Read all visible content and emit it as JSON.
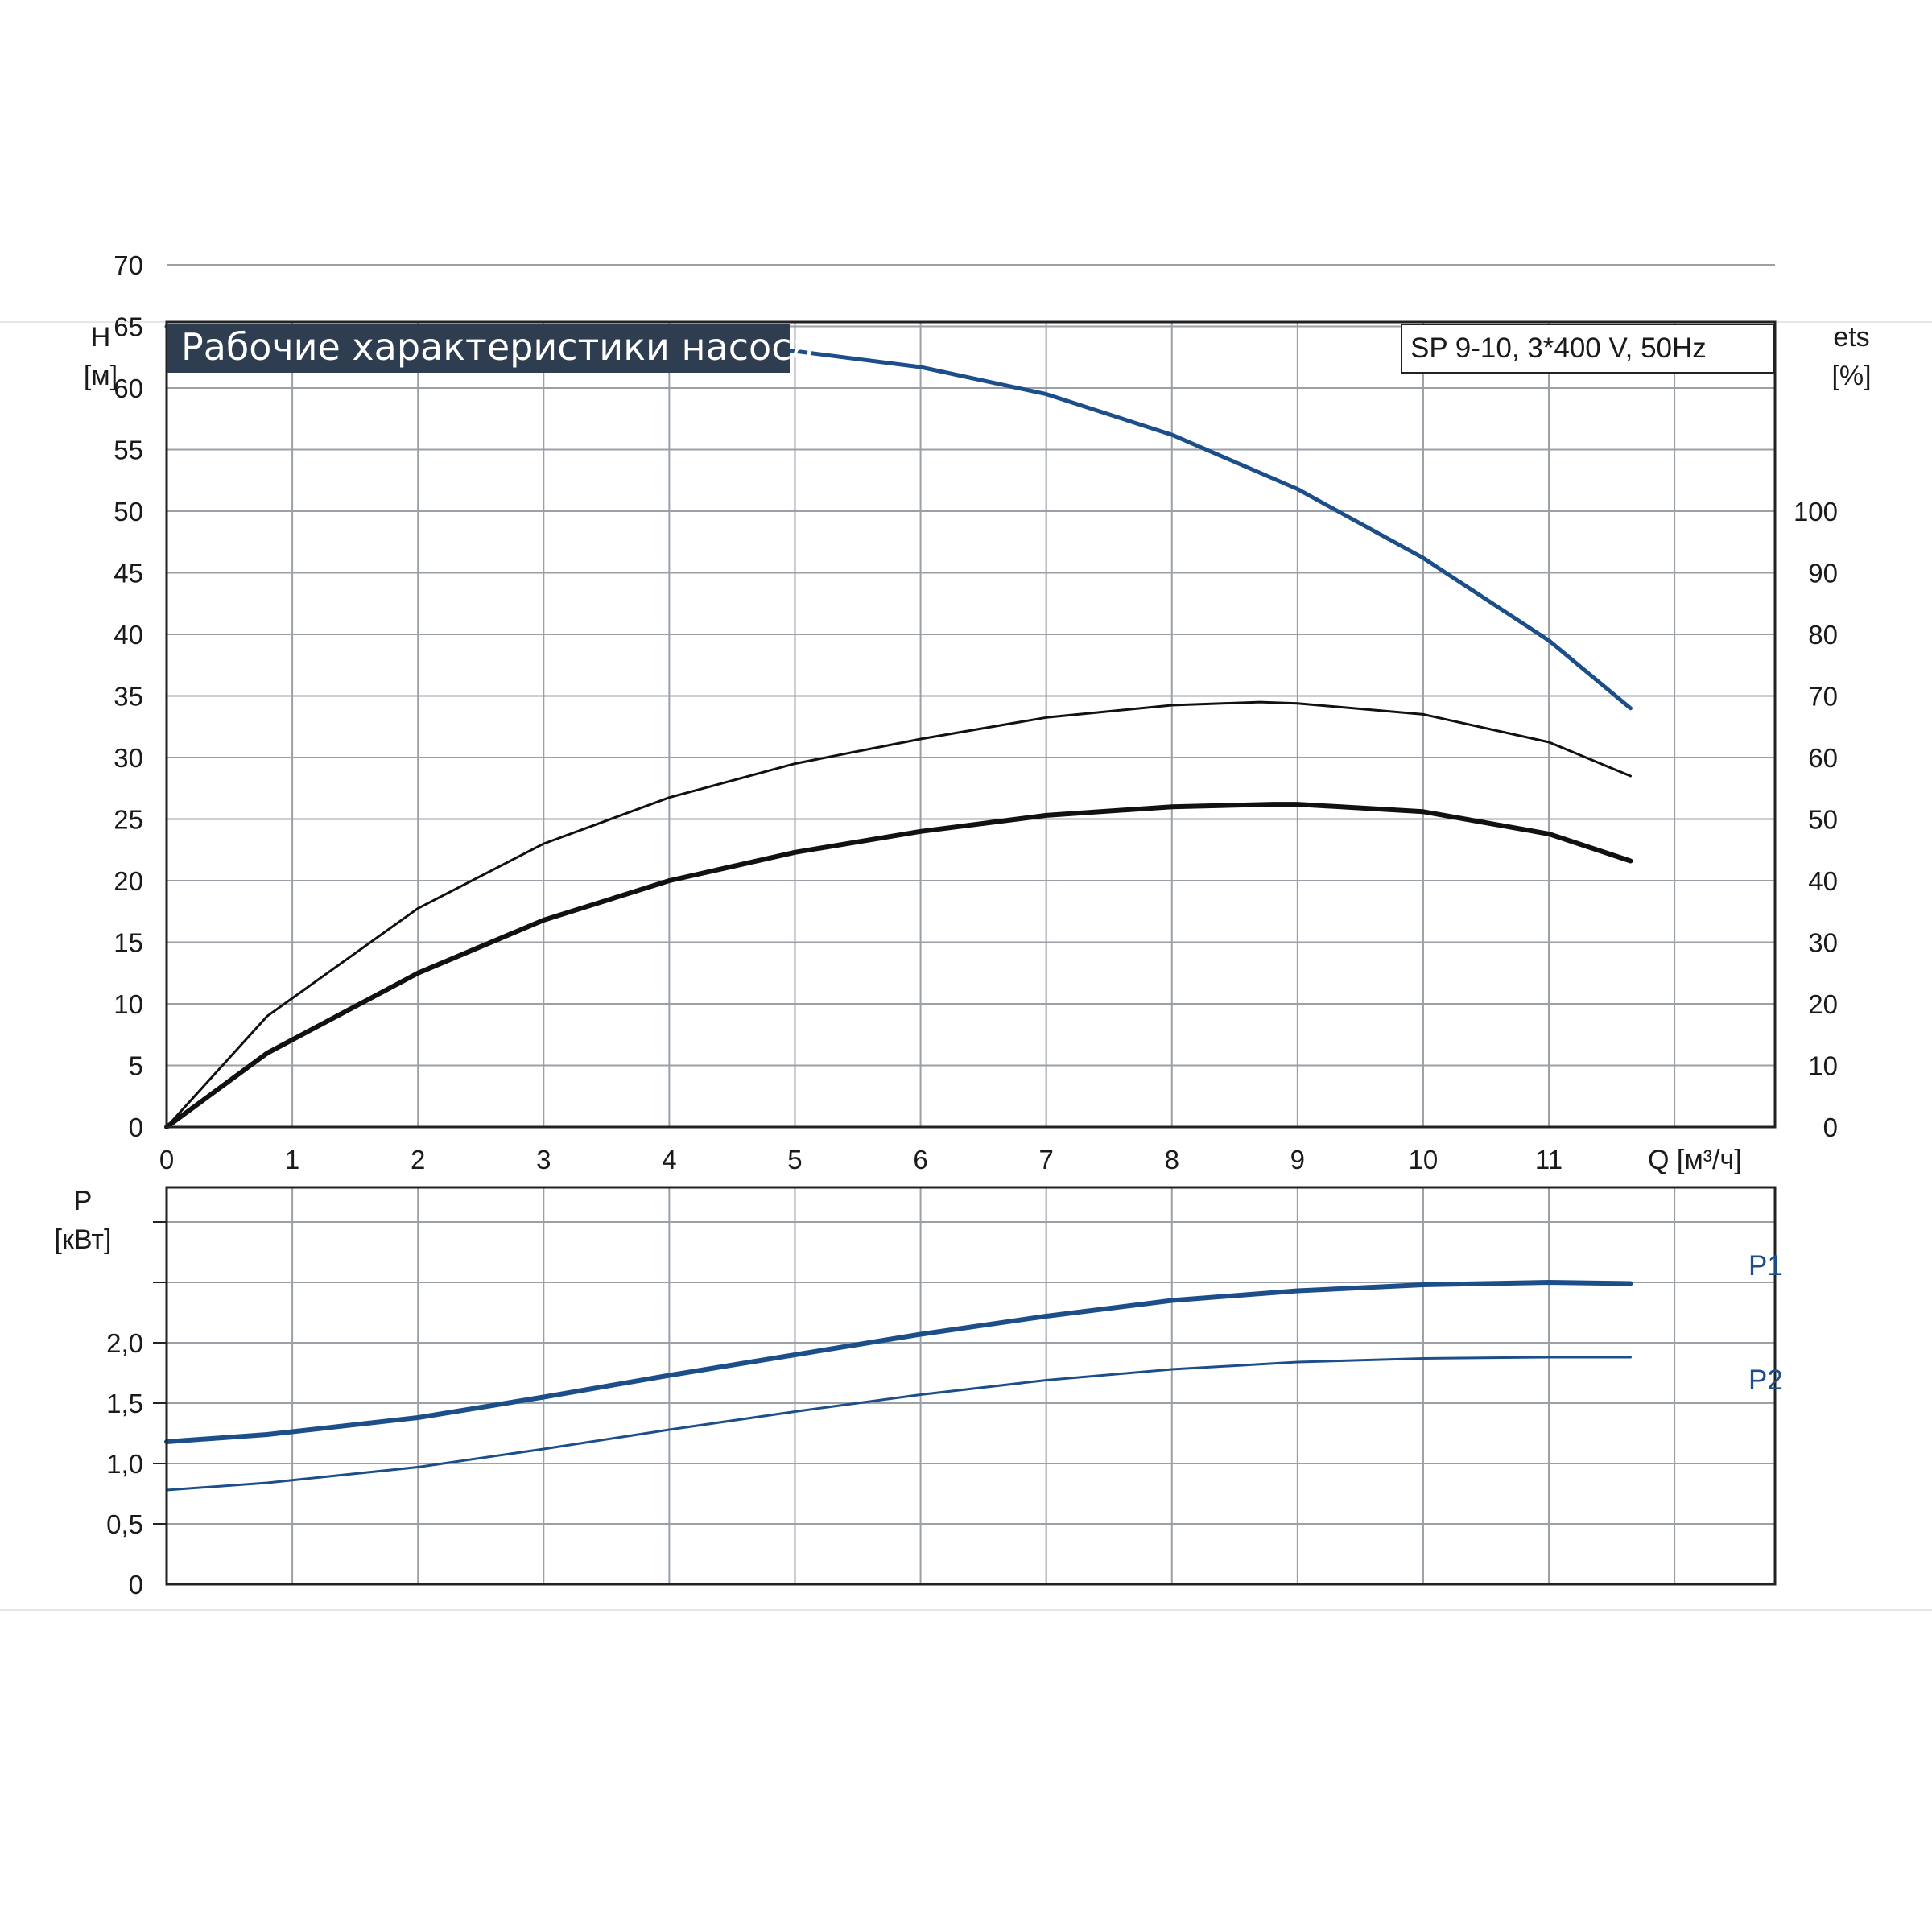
{
  "chart_data": [
    {
      "type": "line",
      "title": "Рабочие характеристики насоса",
      "subtitle": "SP 9-10, 3*400 V, 50Hz",
      "xlabel": "Q [м³/ч]",
      "ylabel": {
        "name": "H",
        "unit": "[м]"
      },
      "y2label": {
        "name": "ets",
        "unit": "[%]"
      },
      "xlim": [
        0,
        12.8
      ],
      "ylim": [
        0,
        70
      ],
      "y2lim": [
        0,
        100
      ],
      "x_ticks": [
        "0",
        "1",
        "2",
        "3",
        "4",
        "5",
        "6",
        "7",
        "8",
        "9",
        "10",
        "11"
      ],
      "y_ticks": [
        "0",
        "5",
        "10",
        "15",
        "20",
        "25",
        "30",
        "35",
        "40",
        "45",
        "50",
        "55",
        "60",
        "65",
        "70"
      ],
      "y2_ticks": [
        "0",
        "10",
        "20",
        "30",
        "40",
        "50",
        "60",
        "70",
        "80",
        "90",
        "100"
      ],
      "grid": true,
      "series": [
        {
          "axis": "left",
          "color": "#1c4f8a",
          "points": [
            [
              0,
              65
            ],
            [
              0.8,
              64.9
            ],
            [
              2,
              64.8
            ],
            [
              3,
              64.5
            ],
            [
              4,
              64.0
            ],
            [
              5,
              63.0
            ],
            [
              6,
              61.7
            ],
            [
              7,
              59.5
            ],
            [
              8,
              56.2
            ],
            [
              9,
              51.8
            ],
            [
              10,
              46.2
            ],
            [
              11,
              39.5
            ],
            [
              11.65,
              34.0
            ]
          ]
        },
        {
          "axis": "right",
          "color": "#111111",
          "points": [
            [
              0,
              0
            ],
            [
              0.8,
              18
            ],
            [
              2,
              35.5
            ],
            [
              3,
              46
            ],
            [
              4,
              53.5
            ],
            [
              5,
              59
            ],
            [
              6,
              63
            ],
            [
              7,
              66.5
            ],
            [
              8,
              68.5
            ],
            [
              8.7,
              69
            ],
            [
              9,
              68.8
            ],
            [
              10,
              67
            ],
            [
              11,
              62.5
            ],
            [
              11.65,
              57
            ]
          ]
        },
        {
          "axis": "left",
          "color": "#111111",
          "dash": false,
          "points": [
            [
              0,
              0
            ],
            [
              0.8,
              6
            ],
            [
              2,
              12.5
            ],
            [
              3,
              16.8
            ],
            [
              4,
              20.0
            ],
            [
              5,
              22.3
            ],
            [
              6,
              24.0
            ],
            [
              7,
              25.3
            ],
            [
              8,
              26.0
            ],
            [
              8.8,
              26.2
            ],
            [
              9,
              26.2
            ],
            [
              10,
              25.6
            ],
            [
              11,
              23.8
            ],
            [
              11.65,
              21.6
            ]
          ]
        }
      ]
    },
    {
      "type": "line",
      "ylabel": {
        "name": "P",
        "unit": "[кВт]"
      },
      "xlim": [
        0,
        12.8
      ],
      "ylim": [
        0,
        3.0
      ],
      "y_ticks": [
        "0",
        "0,5",
        "1,0",
        "1,5",
        "2,0"
      ],
      "grid": true,
      "series": [
        {
          "name": "P1",
          "color": "#1c4f8a",
          "points": [
            [
              0,
              1.18
            ],
            [
              0.8,
              1.24
            ],
            [
              2,
              1.38
            ],
            [
              3,
              1.55
            ],
            [
              4,
              1.73
            ],
            [
              5,
              1.9
            ],
            [
              6,
              2.07
            ],
            [
              7,
              2.22
            ],
            [
              8,
              2.35
            ],
            [
              9,
              2.43
            ],
            [
              10,
              2.48
            ],
            [
              11,
              2.5
            ],
            [
              11.65,
              2.49
            ]
          ]
        },
        {
          "name": "P2",
          "color": "#1c4f8a",
          "points": [
            [
              0,
              0.78
            ],
            [
              0.8,
              0.84
            ],
            [
              2,
              0.97
            ],
            [
              3,
              1.12
            ],
            [
              4,
              1.28
            ],
            [
              5,
              1.43
            ],
            [
              6,
              1.57
            ],
            [
              7,
              1.69
            ],
            [
              8,
              1.78
            ],
            [
              9,
              1.84
            ],
            [
              10,
              1.87
            ],
            [
              11,
              1.88
            ],
            [
              11.65,
              1.88
            ]
          ]
        }
      ]
    }
  ]
}
